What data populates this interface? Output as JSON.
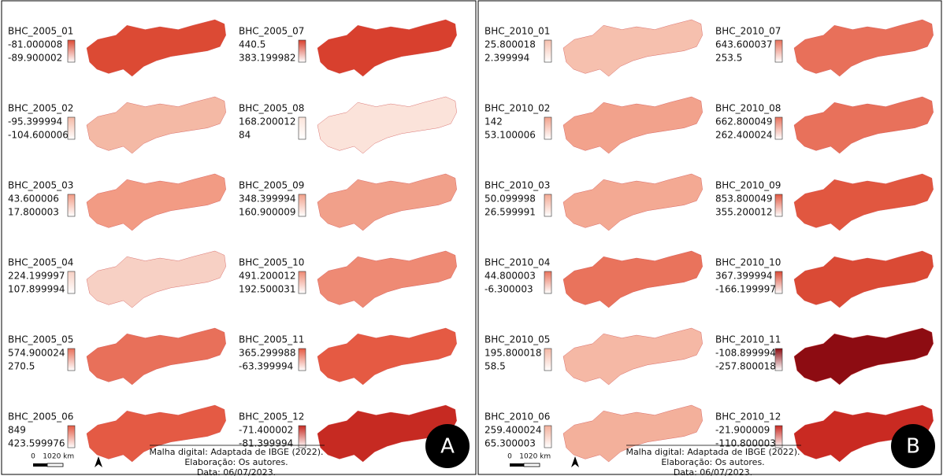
{
  "panels": [
    {
      "letter": "A",
      "maps": [
        {
          "name": "BHC_2005_01",
          "max": "-81.000008",
          "min": "-89.900002",
          "color": "#dc4a34"
        },
        {
          "name": "BHC_2005_02",
          "max": "-95.399994",
          "min": "-104.600006",
          "color": "#f4b9a5"
        },
        {
          "name": "BHC_2005_03",
          "max": "43.600006",
          "min": "17.800003",
          "color": "#f29b84"
        },
        {
          "name": "BHC_2005_04",
          "max": "224.199997",
          "min": "107.899994",
          "color": "#f7d0c4"
        },
        {
          "name": "BHC_2005_05",
          "max": "574.900024",
          "min": "270.5",
          "color": "#e8705a"
        },
        {
          "name": "BHC_2005_06",
          "max": "849",
          "min": "423.599976",
          "color": "#e45a44"
        },
        {
          "name": "BHC_2005_07",
          "max": "440.5",
          "min": "383.199982",
          "color": "#d8402e"
        },
        {
          "name": "BHC_2005_08",
          "max": "168.200012",
          "min": "84",
          "color": "#fbe3da"
        },
        {
          "name": "BHC_2005_09",
          "max": "348.399994",
          "min": "160.900009",
          "color": "#f1a08a"
        },
        {
          "name": "BHC_2005_10",
          "max": "491.200012",
          "min": "192.500031",
          "color": "#ee8a74"
        },
        {
          "name": "BHC_2005_11",
          "max": "365.299988",
          "min": "-63.399994",
          "color": "#e55a43"
        },
        {
          "name": "BHC_2005_12",
          "max": "-71.400002",
          "min": "-81.399994",
          "color": "#c62a22"
        }
      ],
      "credits": [
        "Malha digital: Adaptada de IBGE (2022).",
        "Elaboração: Os autores.",
        "Data: 06/07/2023."
      ],
      "scale_labels": [
        "0",
        "10",
        "20 km"
      ]
    },
    {
      "letter": "B",
      "maps": [
        {
          "name": "BHC_2010_01",
          "max": "25.800018",
          "min": "2.399994",
          "color": "#f6c0ae"
        },
        {
          "name": "BHC_2010_02",
          "max": "142",
          "min": "53.100006",
          "color": "#f2a28c"
        },
        {
          "name": "BHC_2010_03",
          "max": "50.099998",
          "min": "26.599991",
          "color": "#f3a993"
        },
        {
          "name": "BHC_2010_04",
          "max": "44.800003",
          "min": "-6.300003",
          "color": "#e9735c"
        },
        {
          "name": "BHC_2010_05",
          "max": "195.800018",
          "min": "58.5",
          "color": "#f5b8a5"
        },
        {
          "name": "BHC_2010_06",
          "max": "259.400024",
          "min": "65.300003",
          "color": "#f3b09b"
        },
        {
          "name": "BHC_2010_07",
          "max": "643.600037",
          "min": "253.5",
          "color": "#e8705a"
        },
        {
          "name": "BHC_2010_08",
          "max": "662.800049",
          "min": "262.400024",
          "color": "#e8715b"
        },
        {
          "name": "BHC_2010_09",
          "max": "853.800049",
          "min": "355.200012",
          "color": "#e15740"
        },
        {
          "name": "BHC_2010_10",
          "max": "367.399994",
          "min": "-166.199997",
          "color": "#da4a35"
        },
        {
          "name": "BHC_2010_11",
          "max": "-108.899994",
          "min": "-257.800018",
          "color": "#8d0c12"
        },
        {
          "name": "BHC_2010_12",
          "max": "-21.900009",
          "min": "-110.800003",
          "color": "#c92a22"
        }
      ],
      "credits": [
        "Malha digital: Adaptada de IBGE (2022).",
        "Elaboração: Os autores.",
        "Data: 06/07/2023."
      ],
      "scale_labels": [
        "0",
        "10",
        "20 km"
      ]
    }
  ]
}
